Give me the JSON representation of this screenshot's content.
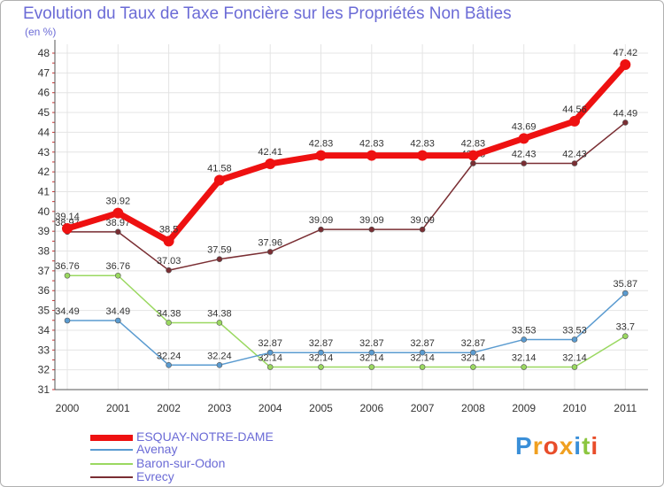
{
  "chart_data": {
    "type": "line",
    "title": "Evolution du Taux de Taxe Foncière sur les Propriétés Non Bâties",
    "unit_label": "(en %)",
    "x": [
      "2000",
      "2001",
      "2002",
      "2003",
      "2004",
      "2005",
      "2006",
      "2007",
      "2008",
      "2009",
      "2010",
      "2011"
    ],
    "ylim": [
      31,
      48
    ],
    "yticks": [
      "31",
      "32",
      "33",
      "34",
      "35",
      "36",
      "37",
      "38",
      "39",
      "40",
      "41",
      "42",
      "43",
      "44",
      "45",
      "46",
      "47",
      "48"
    ],
    "series": [
      {
        "name": "ESQUAY-NOTRE-DAME",
        "color": "#ee1111",
        "values": [
          39.14,
          39.92,
          38.5,
          41.58,
          42.41,
          42.83,
          42.83,
          42.83,
          42.83,
          43.69,
          44.56,
          47.42
        ],
        "labels": [
          "39.14",
          "39.92",
          "38.5",
          "41.58",
          "42.41",
          "42.83",
          "42.83",
          "42.83",
          "42.83",
          "43.69",
          "44.56",
          "47.42"
        ]
      },
      {
        "name": "Avenay",
        "color": "#5a9bd0",
        "values": [
          34.49,
          34.49,
          32.24,
          32.24,
          32.87,
          32.87,
          32.87,
          32.87,
          32.87,
          33.53,
          33.53,
          35.87
        ],
        "labels": [
          "34.49",
          "34.49",
          "32.24",
          "32.24",
          "32.87",
          "32.87",
          "32.87",
          "32.87",
          "32.87",
          "33.53",
          "33.53",
          "35.87"
        ]
      },
      {
        "name": "Baron-sur-Odon",
        "color": "#9ad860",
        "values": [
          36.76,
          36.76,
          34.38,
          34.38,
          32.14,
          32.14,
          32.14,
          32.14,
          32.14,
          32.14,
          32.14,
          33.7
        ],
        "labels": [
          "36.76",
          "36.76",
          "34.38",
          "34.38",
          "32.14",
          "32.14",
          "32.14",
          "32.14",
          "32.14",
          "32.14",
          "32.14",
          "33.7"
        ]
      },
      {
        "name": "Evrecy",
        "color": "#7a2e33",
        "values": [
          38.97,
          38.97,
          37.03,
          37.59,
          37.96,
          39.09,
          39.09,
          39.09,
          42.43,
          42.43,
          42.43,
          44.49
        ],
        "labels": [
          "38.97",
          "38.97",
          "37.03",
          "37.59",
          "37.96",
          "39.09",
          "39.09",
          "39.09",
          "42.43",
          "42.43",
          "42.43",
          "44.49"
        ]
      }
    ]
  },
  "legend": {
    "items": [
      "ESQUAY-NOTRE-DAME",
      "Avenay",
      "Baron-sur-Odon",
      "Evrecy"
    ]
  },
  "logo": {
    "text": "Proxiti",
    "letters": [
      {
        "ch": "P",
        "color": "#3a8fd8"
      },
      {
        "ch": "r",
        "color": "#f0a020"
      },
      {
        "ch": "o",
        "color": "#e84d2a"
      },
      {
        "ch": "x",
        "color": "#f0a020"
      },
      {
        "ch": "i",
        "color": "#3a8fd8"
      },
      {
        "ch": "t",
        "color": "#8cc63f"
      },
      {
        "ch": "i",
        "color": "#e84d2a"
      }
    ]
  }
}
